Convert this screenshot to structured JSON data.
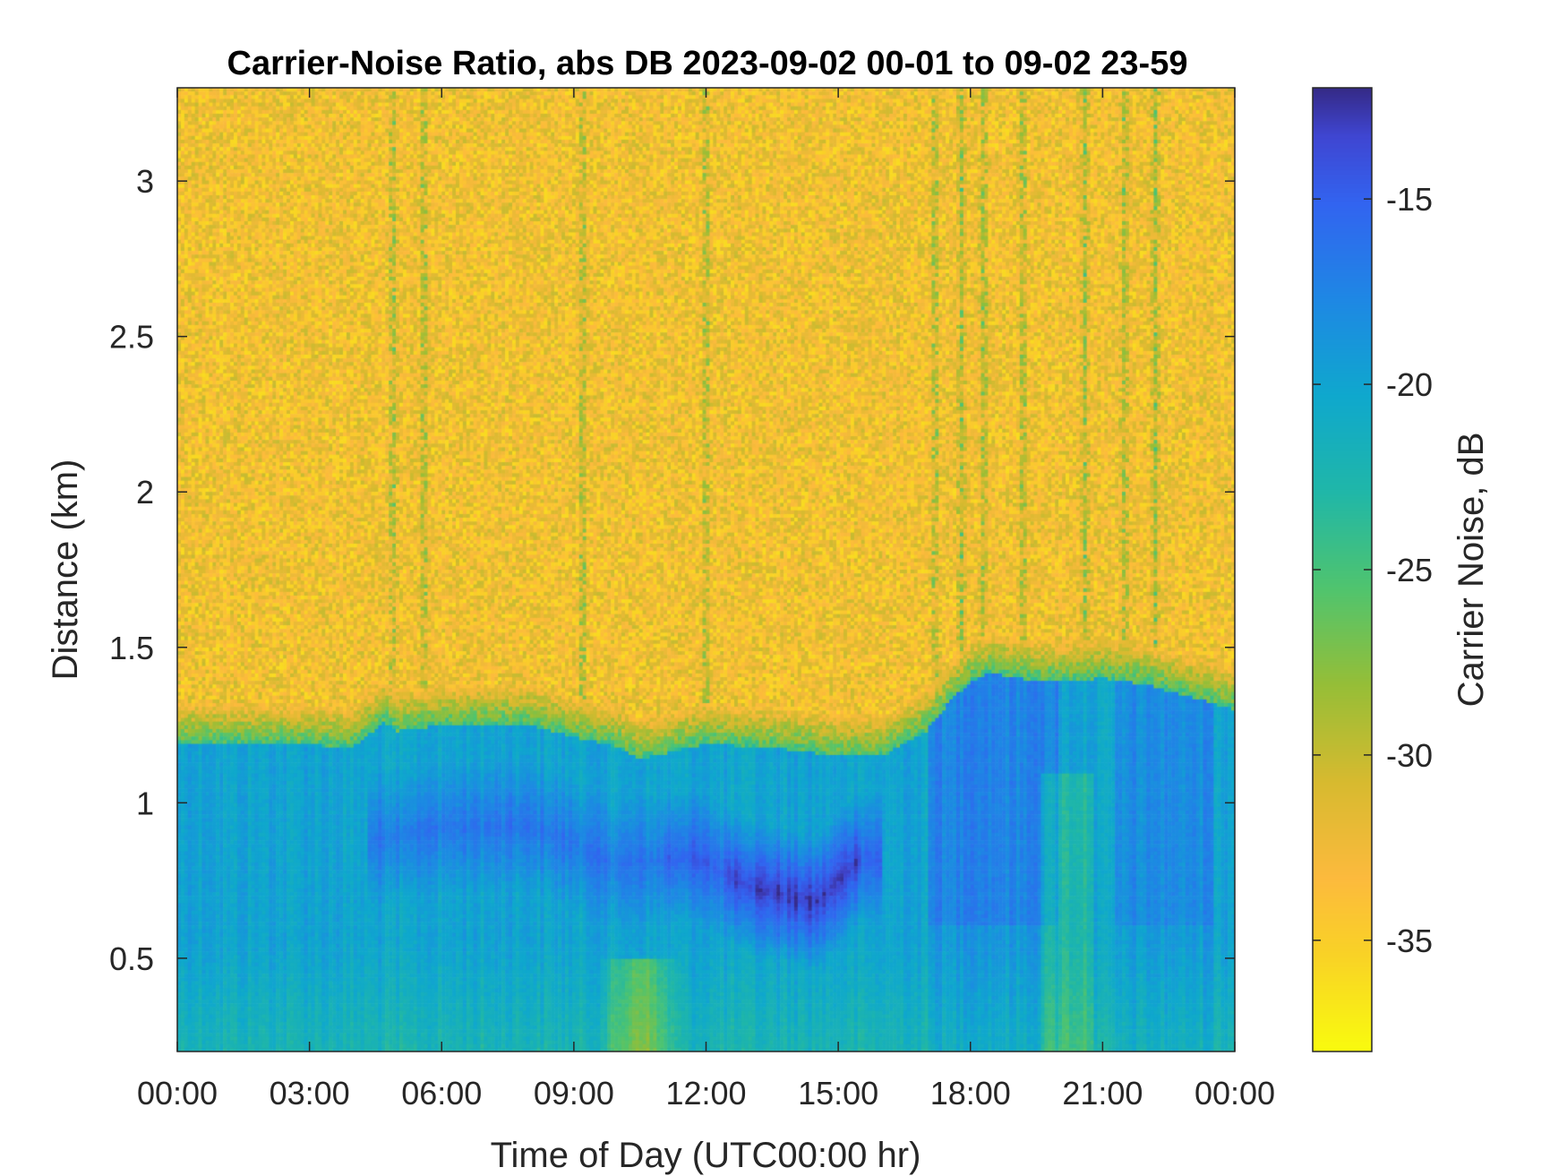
{
  "chart_data": {
    "type": "heatmap",
    "title": "Carrier-Noise Ratio, abs DB 2023-09-02 00-01 to 09-02 23-59",
    "xlabel": "Time of Day (UTC00:00 hr)",
    "ylabel": "Distance (km)",
    "colorbar_label": "Carrier Noise, dB",
    "colormap": "parula",
    "xlim": [
      0,
      24
    ],
    "ylim": [
      0.2,
      3.3
    ],
    "clim": [
      -38,
      -12
    ],
    "x_ticks": [
      0,
      3,
      6,
      9,
      12,
      15,
      18,
      21,
      24
    ],
    "x_tick_labels": [
      "00:00",
      "03:00",
      "06:00",
      "09:00",
      "12:00",
      "15:00",
      "18:00",
      "21:00",
      "00:00"
    ],
    "y_ticks": [
      0.5,
      1,
      1.5,
      2,
      2.5,
      3
    ],
    "y_tick_labels": [
      "0.5",
      "1",
      "1.5",
      "2",
      "2.5",
      "3"
    ],
    "colorbar_ticks": [
      -15,
      -20,
      -25,
      -30,
      -35
    ],
    "colorbar_tick_labels": [
      "-15",
      "-20",
      "-25",
      "-30",
      "-35"
    ],
    "boundary_layer_top_km": {
      "hours": [
        0,
        2,
        4,
        4.7,
        5,
        6,
        8,
        9,
        10,
        10.5,
        12,
        14,
        15,
        16,
        17,
        17.5,
        18,
        18.5,
        19,
        20,
        21,
        22,
        23,
        24
      ],
      "values": [
        1.27,
        1.27,
        1.26,
        1.34,
        1.31,
        1.33,
        1.33,
        1.29,
        1.26,
        1.22,
        1.27,
        1.25,
        1.23,
        1.23,
        1.31,
        1.4,
        1.47,
        1.5,
        1.48,
        1.47,
        1.48,
        1.46,
        1.42,
        1.38
      ]
    },
    "strong_signal_core_km": {
      "hours": [
        4.5,
        6,
        8,
        10,
        11.7,
        13,
        14.5,
        15.5
      ],
      "values": [
        0.88,
        0.92,
        0.93,
        0.8,
        0.83,
        0.73,
        0.68,
        0.82
      ],
      "min_value_db": -12
    },
    "background_above_mixing_layer_db": -33,
    "mixed_layer_typical_db": -20
  }
}
